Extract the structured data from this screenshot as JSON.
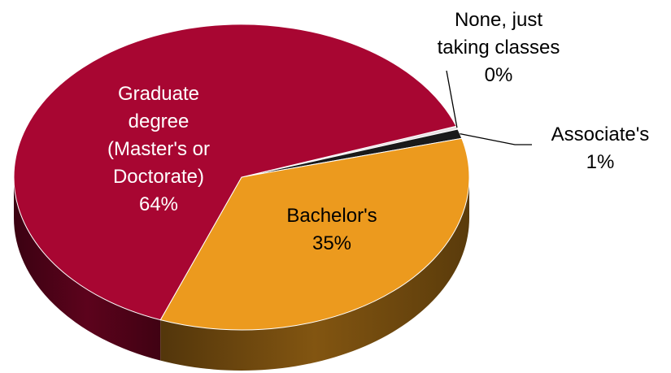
{
  "chart_data": {
    "type": "pie",
    "title": "",
    "legend": "none",
    "labels_shown": "category name and percentage",
    "slices": [
      {
        "name": "None, just taking classes",
        "value": 0,
        "label_lines": [
          "None, just",
          "taking classes",
          "0%"
        ],
        "color": "#E8E2E4"
      },
      {
        "name": "Associate's",
        "value": 1,
        "label_lines": [
          "Associate's",
          "1%"
        ],
        "color": "#1A1A1A"
      },
      {
        "name": "Bachelor's",
        "value": 35,
        "label_lines": [
          "Bachelor's",
          "35%"
        ],
        "color": "#EC9A1E"
      },
      {
        "name": "Graduate degree (Master's or Doctorate)",
        "value": 64,
        "label_lines": [
          "Graduate",
          "degree",
          "(Master's or",
          "Doctorate)",
          "64%"
        ],
        "color": "#A80632"
      }
    ],
    "label_colors": {
      "inside": "#FFFFFF",
      "outside": "#000000"
    }
  }
}
